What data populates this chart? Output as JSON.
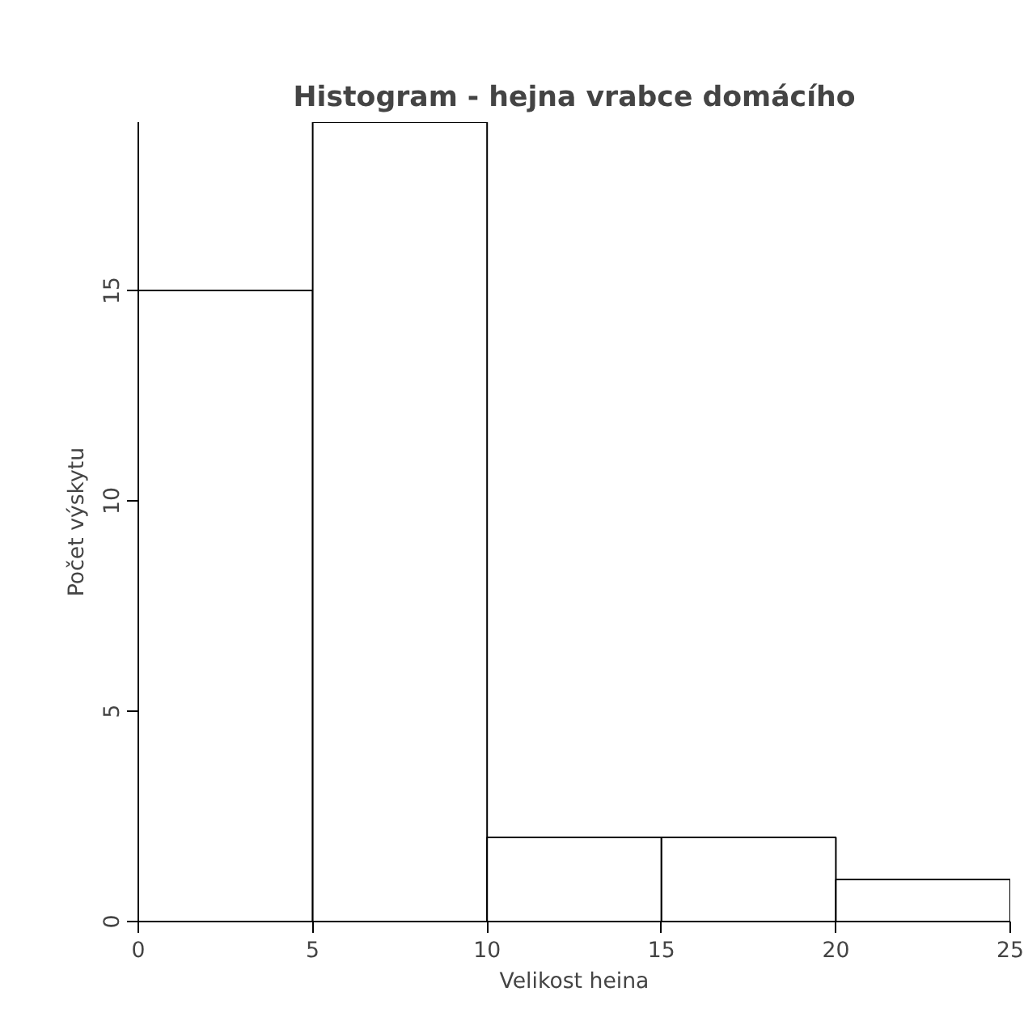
{
  "chart_data": {
    "type": "histogram",
    "title": "Histogram - hejna vrabce domácího",
    "xlabel": "Velikost heina",
    "ylabel": "Počet výskytu",
    "bins": [
      0,
      5,
      10,
      15,
      20,
      25
    ],
    "values": [
      15,
      19,
      2,
      2,
      1
    ],
    "color": "#ffffff",
    "xlim": [
      0,
      25
    ],
    "ylim": [
      0,
      19
    ],
    "xticks": [
      0,
      5,
      10,
      15,
      20,
      25
    ],
    "yticks": [
      0,
      5,
      10,
      15
    ],
    "grid": false
  }
}
